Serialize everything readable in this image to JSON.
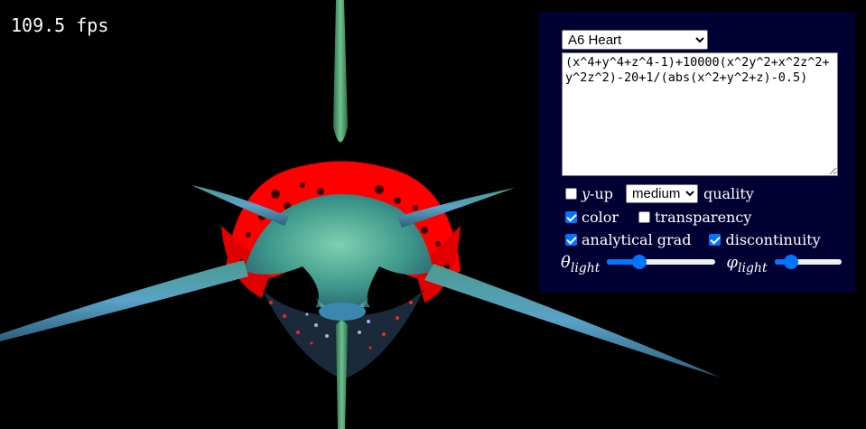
{
  "fps": "109.5 fps",
  "panel": {
    "preset_selected": "A6 Heart",
    "expression": "(x^4+y^4+z^4-1)+10000(x^2y^2+x^2z^2+y^2z^2)-20+1/(abs(x^2+y^2+z)-0.5)",
    "y_up": {
      "label_var": "y",
      "label_rest": "-up",
      "checked": false
    },
    "quality": {
      "selected": "medium",
      "label": "quality"
    },
    "color": {
      "label": "color",
      "checked": true
    },
    "transparency": {
      "label": "transparency",
      "checked": false
    },
    "analytical_grad": {
      "label": "analytical grad",
      "checked": true
    },
    "discontinuity": {
      "label": "discontinuity",
      "checked": true
    },
    "theta_light": {
      "symbol": "θ",
      "sub": "light",
      "value": 0.3
    },
    "phi_light": {
      "symbol": "φ",
      "sub": "light",
      "value": 0.25
    }
  },
  "colors": {
    "panel_bg": "#000033",
    "accent": "#0075ff",
    "surface_red": "#ff0000"
  }
}
